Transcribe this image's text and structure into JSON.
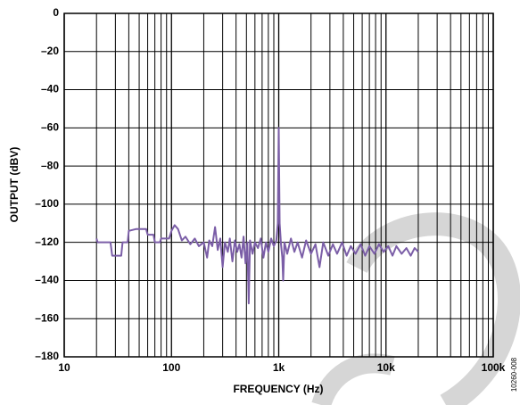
{
  "chart_data": {
    "type": "line",
    "x_label": "FREQUENCY (Hz)",
    "y_label": "OUTPUT (dBV)",
    "figure_id": "10260-008",
    "x": [
      20,
      20.5,
      27,
      28,
      34,
      35,
      39,
      40,
      47,
      58,
      60,
      68,
      70,
      78,
      80,
      95,
      100,
      107,
      115,
      125,
      135,
      150,
      165,
      180,
      200,
      215,
      225,
      240,
      255,
      270,
      285,
      300,
      315,
      335,
      350,
      370,
      390,
      410,
      430,
      450,
      470,
      490,
      510,
      525,
      540,
      570,
      600,
      640,
      680,
      720,
      760,
      800,
      850,
      900,
      950,
      980,
      1000,
      1020,
      1050,
      1080,
      1100,
      1130,
      1200,
      1300,
      1400,
      1500,
      1650,
      1800,
      2000,
      2200,
      2400,
      2600,
      2900,
      3200,
      3500,
      3900,
      4300,
      4700,
      5200,
      5800,
      6400,
      7000,
      7800,
      8600,
      9500,
      10500,
      11500,
      12500,
      14000,
      15500,
      17000,
      18500,
      20000
    ],
    "values": [
      -118,
      -120,
      -120,
      -127,
      -127,
      -120,
      -120,
      -114,
      -113,
      -113,
      -116,
      -116,
      -120,
      -120,
      -118,
      -118,
      -114,
      -111,
      -113,
      -119,
      -117,
      -121,
      -118,
      -122,
      -120,
      -128,
      -119,
      -122,
      -112,
      -124,
      -118,
      -133,
      -120,
      -125,
      -118,
      -130,
      -119,
      -125,
      -121,
      -128,
      -117,
      -131,
      -120,
      -152,
      -119,
      -126,
      -120,
      -123,
      -118,
      -128,
      -120,
      -125,
      -118,
      -122,
      -119,
      -110,
      -60,
      -110,
      -121,
      -128,
      -140,
      -120,
      -126,
      -118,
      -125,
      -120,
      -128,
      -119,
      -126,
      -121,
      -133,
      -120,
      -127,
      -121,
      -126,
      -120,
      -127,
      -122,
      -126,
      -121,
      -127,
      -122,
      -126,
      -121,
      -125,
      -122,
      -127,
      -122,
      -126,
      -123,
      -127,
      -123,
      -125
    ],
    "color": "#7b5ea7",
    "log_x": true,
    "grid": true,
    "minor_grid": true,
    "xlim": [
      10,
      100000
    ],
    "xticks": [
      10,
      100,
      {
        "value": 1000,
        "label": "1k"
      },
      {
        "value": 10000,
        "label": "10k"
      },
      {
        "value": 100000,
        "label": "100k"
      }
    ],
    "ylim": [
      -180,
      0
    ],
    "yticks": [
      {
        "value": -180,
        "label": "–180"
      },
      {
        "value": -160,
        "label": "–160"
      },
      {
        "value": -140,
        "label": "–140"
      },
      {
        "value": -120,
        "label": "–120"
      },
      {
        "value": -100,
        "label": "–100"
      },
      {
        "value": -80,
        "label": "–80"
      },
      {
        "value": -60,
        "label": "–60"
      },
      {
        "value": -40,
        "label": "–40"
      },
      {
        "value": -20,
        "label": "–20"
      },
      0
    ]
  }
}
